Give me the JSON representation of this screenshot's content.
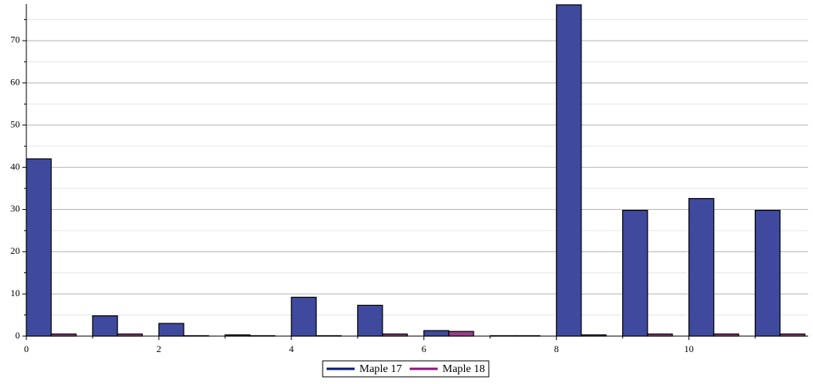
{
  "chart_data": {
    "type": "bar",
    "x": [
      0,
      1,
      2,
      3,
      4,
      5,
      6,
      7,
      8,
      9,
      10,
      11
    ],
    "series": [
      {
        "name": "Maple 17",
        "color": "#3f4a9e",
        "legend_color": "#0a1a6e",
        "values": [
          42,
          4.8,
          3,
          0.3,
          9.2,
          7.3,
          1.3,
          0.1,
          78.5,
          29.8,
          32.6,
          29.8
        ]
      },
      {
        "name": "Maple 18",
        "color": "#9b3d8c",
        "legend_color": "#8a1a7a",
        "values": [
          0.5,
          0.5,
          0.1,
          0.1,
          0.1,
          0.5,
          1.1,
          0.1,
          0.3,
          0.5,
          0.5,
          0.5
        ]
      }
    ],
    "xlim": [
      0,
      11.8
    ],
    "xticks": [
      0,
      2,
      4,
      6,
      8,
      10
    ],
    "xminor": [
      1,
      3,
      5,
      7,
      9,
      11
    ],
    "ylim": [
      0,
      78.7
    ],
    "yticks": [
      0,
      10,
      20,
      30,
      40,
      50,
      60,
      70
    ],
    "yminor": [
      5,
      15,
      25,
      35,
      45,
      55,
      65,
      75
    ],
    "grid": true,
    "legend": "bottom"
  }
}
